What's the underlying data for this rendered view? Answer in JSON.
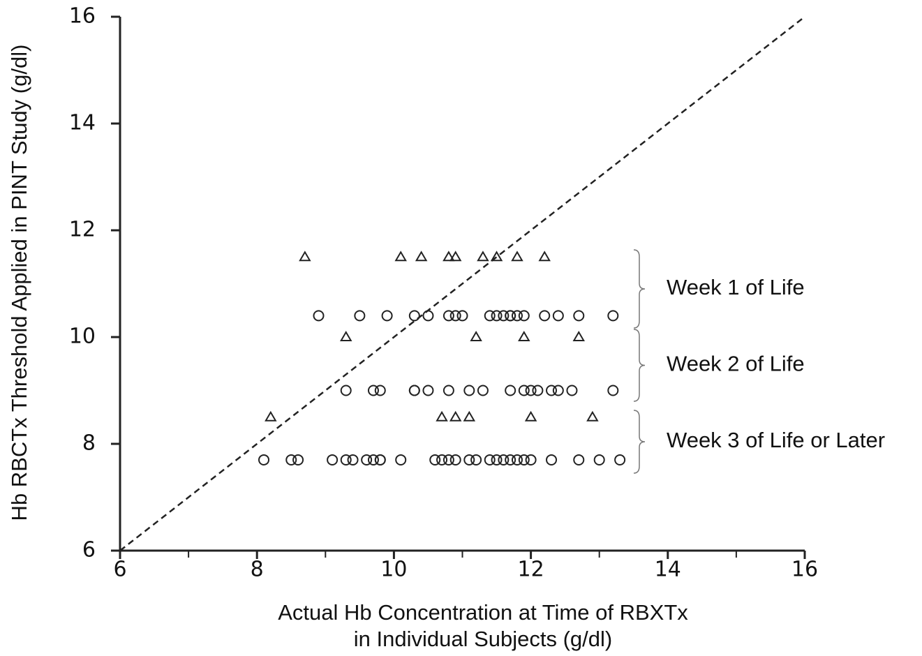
{
  "chart_data": {
    "type": "scatter",
    "xlabel": [
      "Actual Hb Concentration at Time of RBXTx",
      "in Individual Subjects (g/dl)"
    ],
    "ylabel": "Hb RBCTx Threshold Applied in PINT Study (g/dl)",
    "xlim": [
      6,
      16
    ],
    "ylim": [
      6,
      16
    ],
    "xticks": [
      6,
      8,
      10,
      12,
      14,
      16
    ],
    "xminor_ticks": [
      7,
      9,
      11,
      13,
      15
    ],
    "yticks": [
      6,
      8,
      10,
      12,
      14,
      16
    ],
    "reference_line": {
      "x": [
        6,
        16
      ],
      "y": [
        6,
        16
      ],
      "style": "dashed"
    },
    "color": "#222",
    "series": [
      {
        "marker": "triangle",
        "x": [
          8.7,
          10.1,
          10.4,
          10.8,
          10.9,
          11.3,
          11.5,
          11.8,
          12.2,
          9.3,
          11.2,
          11.9,
          12.7,
          8.2,
          10.7,
          10.9,
          11.1,
          12.0,
          12.9
        ],
        "y": [
          11.5,
          11.5,
          11.5,
          11.5,
          11.5,
          11.5,
          11.5,
          11.5,
          11.5,
          10,
          10,
          10,
          10,
          8.5,
          8.5,
          8.5,
          8.5,
          8.5,
          8.5
        ]
      },
      {
        "marker": "circle",
        "x": [
          8.9,
          9.5,
          9.9,
          10.3,
          10.5,
          10.8,
          10.9,
          11.0,
          11.4,
          11.5,
          11.6,
          11.7,
          11.7,
          11.8,
          11.9,
          12.2,
          12.4,
          12.7,
          13.2,
          9.3,
          9.7,
          9.8,
          10.3,
          10.3,
          10.5,
          10.8,
          11.1,
          11.3,
          11.7,
          11.9,
          12.0,
          12.1,
          12.3,
          12.4,
          12.6,
          13.2,
          8.1,
          8.5,
          8.6,
          9.1,
          9.3,
          9.4,
          9.6,
          9.7,
          9.8,
          9.8,
          10.1,
          10.6,
          10.7,
          10.8,
          10.9,
          11.1,
          11.2,
          11.4,
          11.5,
          11.6,
          11.7,
          11.8,
          11.9,
          12.0,
          12.3,
          12.7,
          13.0,
          13.3
        ],
        "y": [
          10.4,
          10.4,
          10.4,
          10.4,
          10.4,
          10.4,
          10.4,
          10.4,
          10.4,
          10.4,
          10.4,
          10.4,
          10.4,
          10.4,
          10.4,
          10.4,
          10.4,
          10.4,
          10.4,
          9,
          9,
          9,
          9,
          9,
          9,
          9,
          9,
          9,
          9,
          9,
          9,
          9,
          9,
          9,
          9,
          9,
          7.7,
          7.7,
          7.7,
          7.7,
          7.7,
          7.7,
          7.7,
          7.7,
          7.7,
          7.7,
          7.7,
          7.7,
          7.7,
          7.7,
          7.7,
          7.7,
          7.7,
          7.7,
          7.7,
          7.7,
          7.7,
          7.7,
          7.7,
          7.7,
          7.7,
          7.7,
          7.7,
          7.7
        ]
      }
    ],
    "annotations": [
      "Week 1 of Life",
      "Week 2 of Life",
      "Week 3 of Life or Later"
    ]
  }
}
